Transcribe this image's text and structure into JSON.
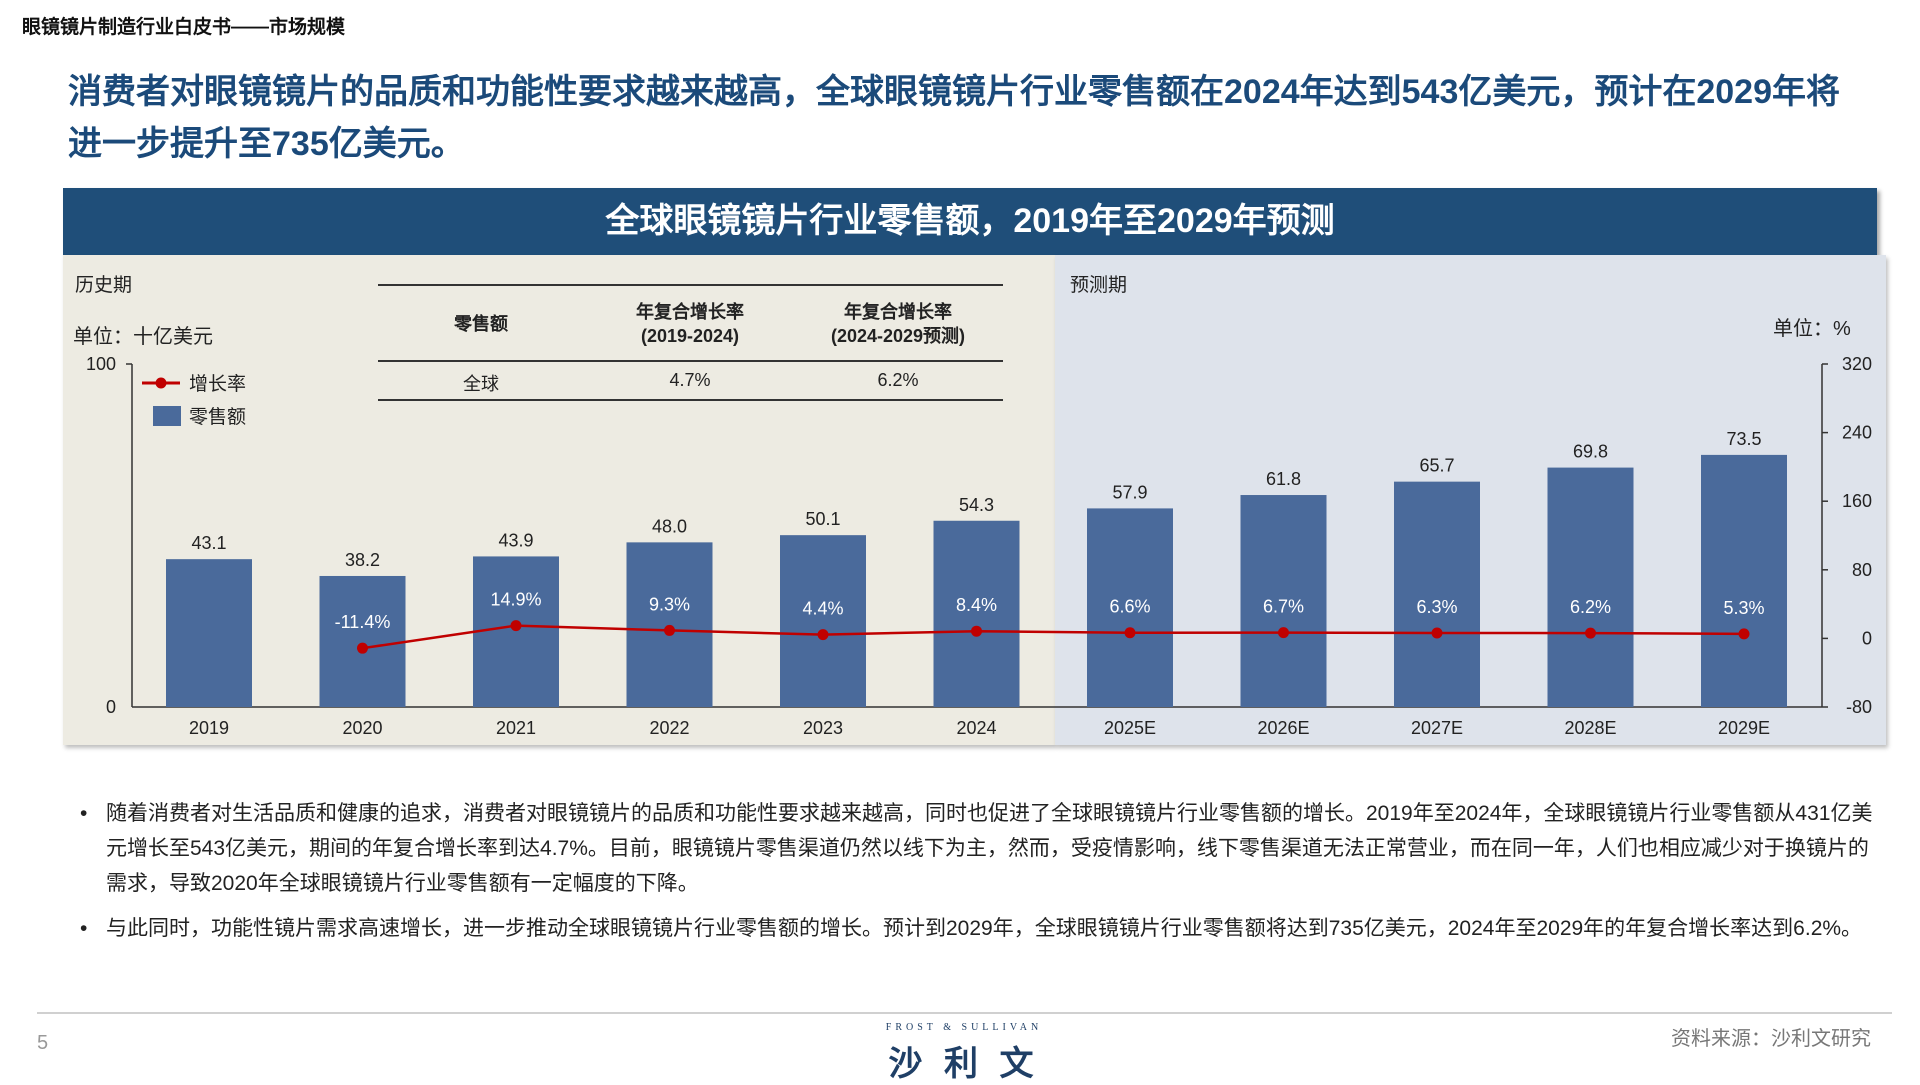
{
  "header": {
    "title": "眼镜镜片制造行业白皮书——市场规模"
  },
  "headline": "消费者对眼镜镜片的品质和功能性要求越来越高，全球眼镜镜片行业零售额在2024年达到543亿美元，预计在2029年将进一步提升至735亿美元。",
  "chart_title": "全球眼镜镜片行业零售额，2019年至2029年预测",
  "periods": {
    "historical": "历史期",
    "forecast": "预测期"
  },
  "cagr_table": {
    "headers": [
      "零售额",
      "年复合增长率\n(2019-2024)",
      "年复合增长率\n(2024-2029预测)"
    ],
    "header_lines": [
      [
        "零售额"
      ],
      [
        "年复合增长率",
        "(2019-2024)"
      ],
      [
        "年复合增长率",
        "(2024-2029预测)"
      ]
    ],
    "rows": [
      [
        "全球",
        "4.7%",
        "6.2%"
      ]
    ]
  },
  "chart_data": {
    "type": "bar+line",
    "categories": [
      "2019",
      "2020",
      "2021",
      "2022",
      "2023",
      "2024",
      "2025E",
      "2026E",
      "2027E",
      "2028E",
      "2029E"
    ],
    "series": [
      {
        "name": "零售额",
        "type": "bar",
        "axis": "left",
        "values": [
          43.1,
          38.2,
          43.9,
          48.0,
          50.1,
          54.3,
          57.9,
          61.8,
          65.7,
          69.8,
          73.5
        ],
        "labels": [
          "43.1",
          "38.2",
          "43.9",
          "48.0",
          "50.1",
          "54.3",
          "57.9",
          "61.8",
          "65.7",
          "69.8",
          "73.5"
        ],
        "color": "#4a6a9b"
      },
      {
        "name": "增长率",
        "type": "line",
        "axis": "right",
        "values": [
          null,
          -11.4,
          14.9,
          9.3,
          4.4,
          8.4,
          6.6,
          6.7,
          6.3,
          6.2,
          5.3
        ],
        "labels": [
          "",
          "-11.4%",
          "14.9%",
          "9.3%",
          "4.4%",
          "8.4%",
          "6.6%",
          "6.7%",
          "6.3%",
          "6.2%",
          "5.3%"
        ],
        "color": "#c00000"
      }
    ],
    "left_axis": {
      "label": "单位：十亿美元",
      "ylim": [
        0,
        100
      ],
      "ticks": [
        "0",
        "100"
      ]
    },
    "right_axis": {
      "label": "单位：%",
      "ylim": [
        -80,
        320
      ],
      "ticks": [
        "320",
        "240",
        "160",
        "80",
        "0",
        "-80"
      ]
    },
    "legend": {
      "position": "top-left",
      "items": [
        "增长率",
        "零售额"
      ]
    },
    "grid": false
  },
  "bullets": [
    "随着消费者对生活品质和健康的追求，消费者对眼镜镜片的品质和功能性要求越来越高，同时也促进了全球眼镜镜片行业零售额的增长。2019年至2024年，全球眼镜镜片行业零售额从431亿美元增长至543亿美元，期间的年复合增长率到达4.7%。目前，眼镜镜片零售渠道仍然以线下为主，然而，受疫情影响，线下零售渠道无法正常营业，而在同一年，人们也相应减少对于换镜片的需求，导致2020年全球眼镜镜片行业零售额有一定幅度的下降。",
    "与此同时，功能性镜片需求高速增长，进一步推动全球眼镜镜片行业零售额的增长。预计到2029年，全球眼镜镜片行业零售额将达到735亿美元，2024年至2029年的年复合增长率达到6.2%。"
  ],
  "footer": {
    "page": "5",
    "logo_en": "FROST & SULLIVAN",
    "logo_cn": "沙 利 文",
    "source": "资料来源：沙利文研究"
  }
}
